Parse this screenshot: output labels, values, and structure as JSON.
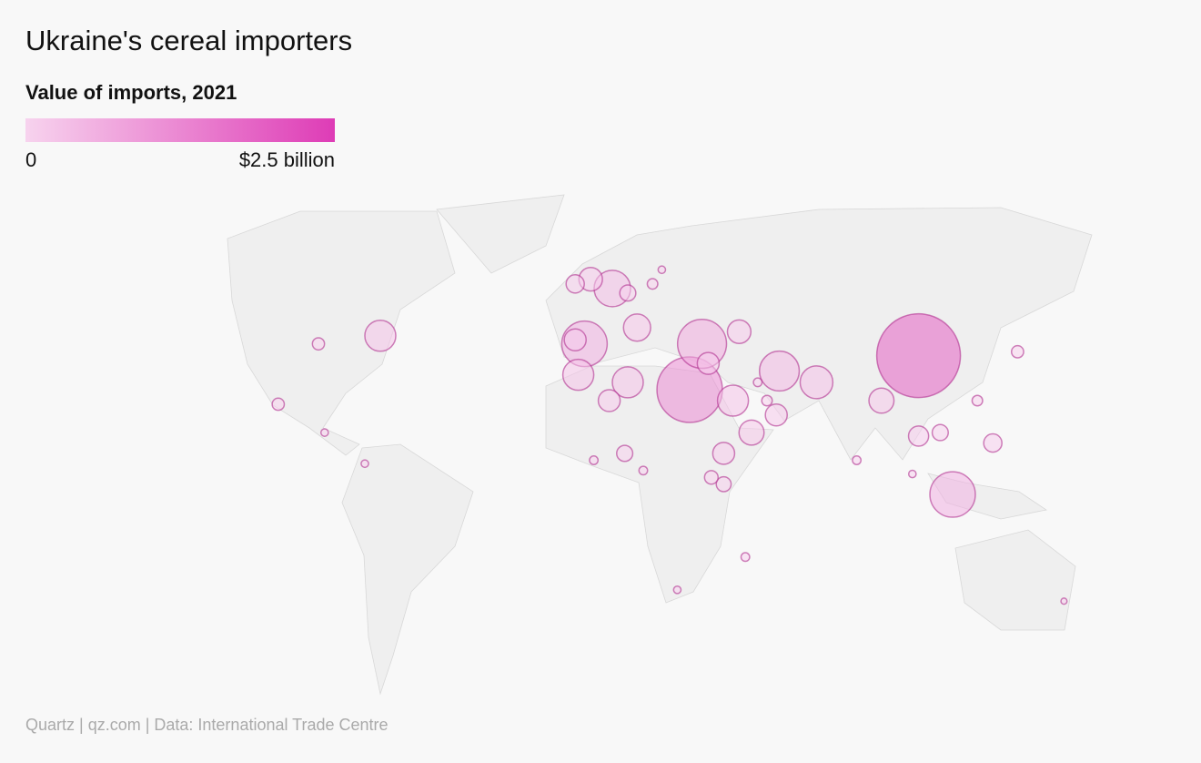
{
  "chart_data": {
    "type": "bubble-map",
    "title": "Ukraine's cereal importers",
    "subtitle": "Value of imports, 2021",
    "colorlim": [
      0,
      2500000000
    ],
    "colorticks": [
      0,
      {
        "value": 2500000000,
        "label": "$2.5 billion"
      }
    ],
    "color_range": [
      "#f7d3ee",
      "#de3cb6"
    ],
    "source": "Quartz | qz.com | Data: International Trade Centre",
    "points": [
      {
        "lon": 104,
        "lat": 36,
        "value": 1900000000
      },
      {
        "lon": 30,
        "lat": 27,
        "value": 1160000000
      },
      {
        "lon": 34,
        "lat": 39,
        "value": 650000000
      },
      {
        "lon": -4,
        "lat": 39,
        "value": 560000000
      },
      {
        "lon": 115,
        "lat": -3,
        "value": 560000000
      },
      {
        "lon": 59,
        "lat": 32,
        "value": 430000000
      },
      {
        "lon": 5,
        "lat": 52,
        "value": 360000000
      },
      {
        "lon": 10,
        "lat": 29,
        "value": 260000000
      },
      {
        "lon": 44,
        "lat": 24,
        "value": 260000000
      },
      {
        "lon": 71,
        "lat": 29,
        "value": 290000000
      },
      {
        "lon": -6,
        "lat": 31,
        "value": 260000000
      },
      {
        "lon": -70,
        "lat": 41,
        "value": 260000000
      },
      {
        "lon": -7,
        "lat": 40,
        "value": 130000000
      },
      {
        "lon": 13,
        "lat": 43,
        "value": 200000000
      },
      {
        "lon": -2,
        "lat": 54,
        "value": 150000000
      },
      {
        "lon": -7,
        "lat": 53,
        "value": 90000000
      },
      {
        "lon": 10,
        "lat": 51,
        "value": 70000000
      },
      {
        "lon": 46,
        "lat": 42,
        "value": 150000000
      },
      {
        "lon": 4,
        "lat": 24,
        "value": 130000000
      },
      {
        "lon": 50,
        "lat": 15,
        "value": 170000000
      },
      {
        "lon": 92,
        "lat": 24,
        "value": 170000000
      },
      {
        "lon": 36,
        "lat": 34,
        "value": 130000000
      },
      {
        "lon": 58,
        "lat": 20,
        "value": 130000000
      },
      {
        "lon": 41,
        "lat": 9,
        "value": 130000000
      },
      {
        "lon": 104,
        "lat": 14,
        "value": 110000000
      },
      {
        "lon": 128,
        "lat": 12,
        "value": 90000000
      },
      {
        "lon": 111,
        "lat": 15,
        "value": 70000000
      },
      {
        "lon": 136,
        "lat": 37,
        "value": 40000000
      },
      {
        "lon": 123,
        "lat": 24,
        "value": 30000000
      },
      {
        "lon": 9,
        "lat": 9,
        "value": 70000000
      },
      {
        "lon": -103,
        "lat": 23,
        "value": 40000000
      },
      {
        "lon": -90,
        "lat": 39,
        "value": 40000000
      },
      {
        "lon": 18,
        "lat": 53,
        "value": 30000000
      },
      {
        "lon": 84,
        "lat": 7,
        "value": 20000000
      },
      {
        "lon": 41,
        "lat": 0,
        "value": 60000000
      },
      {
        "lon": 48,
        "lat": -21,
        "value": 20000000
      },
      {
        "lon": 26,
        "lat": -30,
        "value": 15000000
      },
      {
        "lon": 55,
        "lat": 24,
        "value": 30000000
      },
      {
        "lon": 52,
        "lat": 29,
        "value": 20000000
      },
      {
        "lon": -1,
        "lat": 7,
        "value": 20000000
      },
      {
        "lon": 15,
        "lat": 4,
        "value": 20000000
      },
      {
        "lon": 37,
        "lat": 2,
        "value": 50000000
      },
      {
        "lon": -75,
        "lat": 6,
        "value": 15000000
      },
      {
        "lon": -88,
        "lat": 15,
        "value": 15000000
      },
      {
        "lon": 151,
        "lat": -33,
        "value": 10000000
      },
      {
        "lon": 21,
        "lat": 56,
        "value": 15000000
      },
      {
        "lon": 102,
        "lat": 3,
        "value": 15000000
      }
    ]
  }
}
